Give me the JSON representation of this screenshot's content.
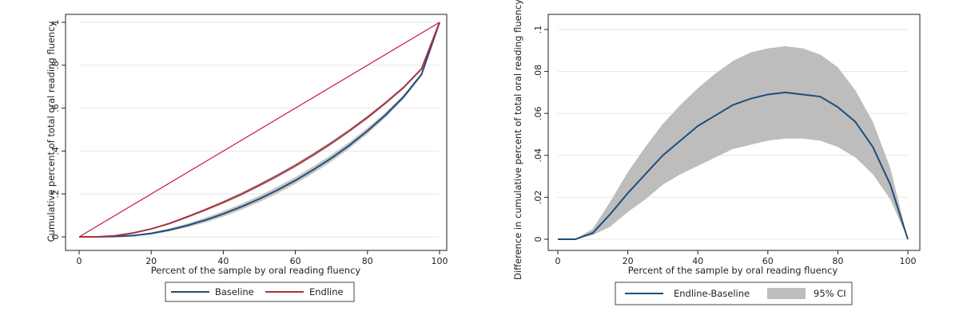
{
  "chart_data": [
    {
      "type": "line",
      "xlabel": "Percent of the sample by oral reading fluency",
      "ylabel": "Cumulative percent of total oral reading fluency",
      "xlim": [
        0,
        100
      ],
      "ylim": [
        0,
        1
      ],
      "x_ticks": [
        "0",
        "20",
        "40",
        "60",
        "80",
        "100"
      ],
      "y_ticks": [
        "0",
        ".2",
        ".4",
        ".6",
        ".8",
        "1"
      ],
      "grid": true,
      "legend_position": "bottom",
      "colors": {
        "baseline": "#1f4e79",
        "endline": "#a8323e",
        "equality": "#c8143c",
        "band": "#bdbdbd"
      },
      "x": [
        0,
        5,
        10,
        15,
        20,
        25,
        30,
        35,
        40,
        45,
        50,
        55,
        60,
        65,
        70,
        75,
        80,
        85,
        90,
        95,
        100
      ],
      "equality_line": [
        0,
        1
      ],
      "series": [
        {
          "name": "Baseline",
          "values": [
            0,
            0,
            0.002,
            0.006,
            0.016,
            0.032,
            0.053,
            0.078,
            0.107,
            0.14,
            0.177,
            0.218,
            0.263,
            0.313,
            0.367,
            0.427,
            0.494,
            0.568,
            0.652,
            0.757,
            1
          ],
          "ci_halfwidth": [
            0,
            0,
            0.001,
            0.003,
            0.005,
            0.007,
            0.009,
            0.011,
            0.013,
            0.014,
            0.015,
            0.016,
            0.016,
            0.016,
            0.016,
            0.015,
            0.014,
            0.012,
            0.01,
            0.007,
            0
          ]
        },
        {
          "name": "Endline",
          "values": [
            0,
            0,
            0.005,
            0.018,
            0.037,
            0.062,
            0.093,
            0.126,
            0.161,
            0.199,
            0.241,
            0.285,
            0.332,
            0.383,
            0.437,
            0.495,
            0.557,
            0.624,
            0.696,
            0.783,
            1
          ],
          "ci_halfwidth": [
            0,
            0,
            0.001,
            0.002,
            0.003,
            0.004,
            0.005,
            0.006,
            0.007,
            0.008,
            0.008,
            0.009,
            0.009,
            0.009,
            0.009,
            0.008,
            0.008,
            0.007,
            0.006,
            0.004,
            0
          ]
        }
      ]
    },
    {
      "type": "area",
      "xlabel": "Percent of the sample by oral reading fluency",
      "ylabel": "Difference in cumulative percent of total oral reading fluency",
      "xlim": [
        0,
        100
      ],
      "ylim": [
        0,
        0.1
      ],
      "x_ticks": [
        "0",
        "20",
        "40",
        "60",
        "80",
        "100"
      ],
      "y_ticks": [
        "0",
        ".02",
        ".04",
        ".06",
        ".08",
        ".1"
      ],
      "grid": true,
      "legend_position": "bottom",
      "colors": {
        "line": "#1f4e79",
        "band": "#bdbdbd"
      },
      "x": [
        0,
        5,
        10,
        15,
        20,
        25,
        30,
        35,
        40,
        45,
        50,
        55,
        60,
        65,
        70,
        75,
        80,
        85,
        90,
        95,
        100
      ],
      "series": [
        {
          "name": "Endline-Baseline",
          "values": [
            0,
            0,
            0.003,
            0.012,
            0.022,
            0.031,
            0.04,
            0.047,
            0.054,
            0.059,
            0.064,
            0.067,
            0.069,
            0.07,
            0.069,
            0.068,
            0.063,
            0.056,
            0.044,
            0.026,
            0
          ]
        },
        {
          "name": "95% CI",
          "lower": [
            0,
            0,
            0.002,
            0.006,
            0.013,
            0.019,
            0.026,
            0.031,
            0.035,
            0.039,
            0.043,
            0.045,
            0.047,
            0.048,
            0.048,
            0.047,
            0.044,
            0.039,
            0.031,
            0.019,
            0
          ],
          "upper": [
            0,
            0,
            0.005,
            0.018,
            0.032,
            0.044,
            0.055,
            0.064,
            0.072,
            0.079,
            0.085,
            0.089,
            0.091,
            0.092,
            0.091,
            0.088,
            0.082,
            0.071,
            0.056,
            0.034,
            0
          ]
        }
      ]
    }
  ]
}
